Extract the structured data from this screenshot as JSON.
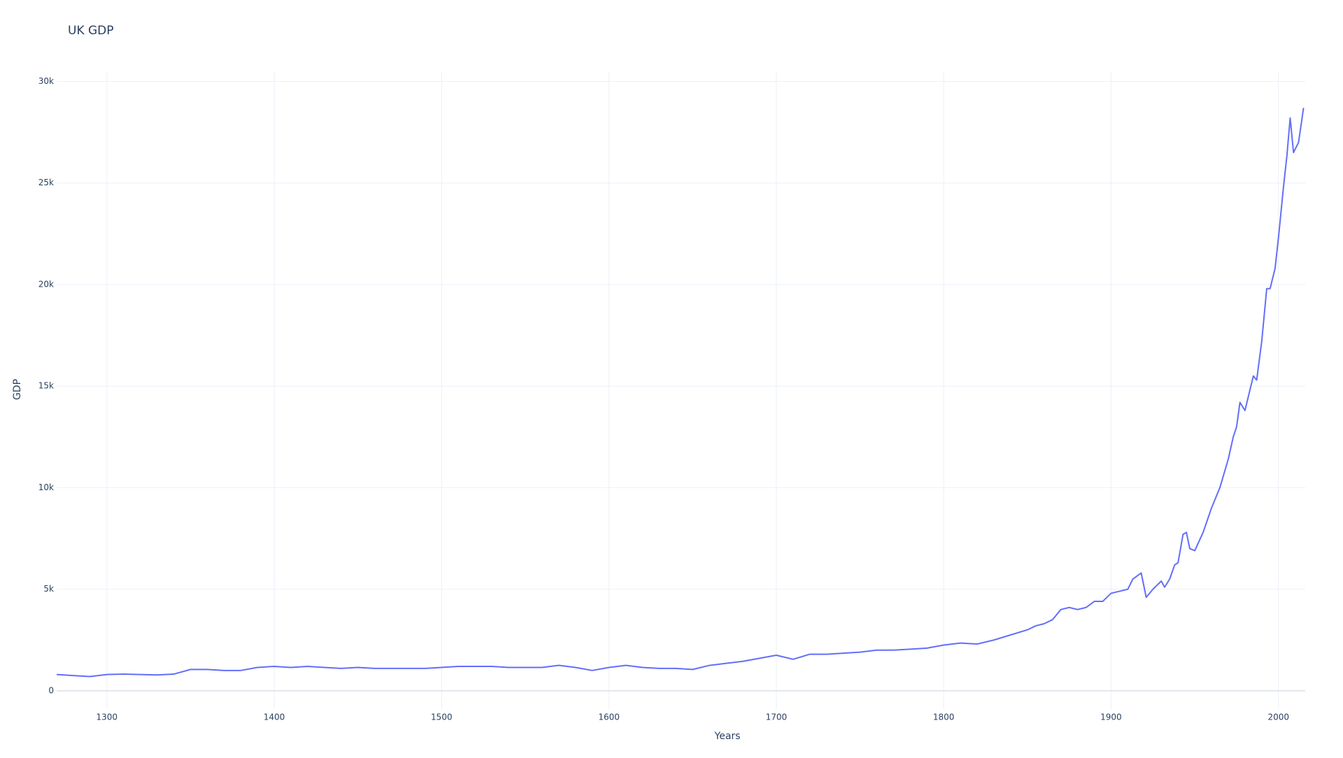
{
  "chart_data": {
    "type": "line",
    "title": "UK GDP",
    "x_label": "Years",
    "y_label": "GDP",
    "x": [
      1270,
      1280,
      1290,
      1300,
      1310,
      1320,
      1330,
      1340,
      1350,
      1360,
      1370,
      1380,
      1390,
      1400,
      1410,
      1420,
      1430,
      1440,
      1450,
      1460,
      1470,
      1480,
      1490,
      1500,
      1510,
      1520,
      1530,
      1540,
      1550,
      1560,
      1570,
      1580,
      1590,
      1600,
      1610,
      1620,
      1630,
      1640,
      1650,
      1660,
      1670,
      1680,
      1690,
      1700,
      1710,
      1720,
      1730,
      1740,
      1750,
      1760,
      1770,
      1780,
      1790,
      1800,
      1810,
      1820,
      1830,
      1840,
      1850,
      1855,
      1860,
      1865,
      1870,
      1875,
      1880,
      1885,
      1890,
      1895,
      1900,
      1905,
      1910,
      1913,
      1918,
      1921,
      1925,
      1930,
      1932,
      1935,
      1938,
      1940,
      1943,
      1945,
      1947,
      1950,
      1955,
      1960,
      1965,
      1970,
      1973,
      1975,
      1977,
      1980,
      1985,
      1987,
      1990,
      1993,
      1995,
      1998,
      2000,
      2003,
      2005,
      2007,
      2009,
      2012,
      2015
    ],
    "series": [
      {
        "name": "GDP",
        "color": "#636efa",
        "values": [
          800,
          750,
          700,
          800,
          820,
          800,
          780,
          820,
          1050,
          1050,
          1000,
          1000,
          1150,
          1200,
          1150,
          1200,
          1150,
          1100,
          1150,
          1100,
          1100,
          1100,
          1100,
          1150,
          1200,
          1200,
          1200,
          1150,
          1150,
          1150,
          1250,
          1150,
          1000,
          1150,
          1250,
          1150,
          1100,
          1100,
          1050,
          1250,
          1350,
          1450,
          1600,
          1750,
          1550,
          1800,
          1800,
          1850,
          1900,
          2000,
          2000,
          2050,
          2100,
          2250,
          2350,
          2300,
          2500,
          2750,
          3000,
          3200,
          3300,
          3500,
          4000,
          4100,
          4000,
          4100,
          4400,
          4400,
          4800,
          4900,
          5000,
          5500,
          5800,
          4600,
          5000,
          5400,
          5100,
          5500,
          6200,
          6300,
          7700,
          7800,
          7000,
          6900,
          7800,
          9000,
          10000,
          11400,
          12500,
          13000,
          14200,
          13800,
          15500,
          15300,
          17200,
          19800,
          19800,
          20800,
          22300,
          24800,
          26300,
          28200,
          26500,
          27000,
          28700
        ]
      }
    ],
    "xlim": [
      1270,
      2016
    ],
    "ylim": [
      -900,
      30500
    ],
    "xticks": [
      1300,
      1400,
      1500,
      1600,
      1700,
      1800,
      1900,
      2000
    ],
    "yticks": [
      0,
      {
        "value": 5000,
        "label": "5k"
      },
      {
        "value": 10000,
        "label": "10k"
      },
      {
        "value": 15000,
        "label": "15k"
      },
      {
        "value": 20000,
        "label": "20k"
      },
      {
        "value": 25000,
        "label": "25k"
      },
      {
        "value": 30000,
        "label": "30k"
      }
    ],
    "grid": true
  }
}
